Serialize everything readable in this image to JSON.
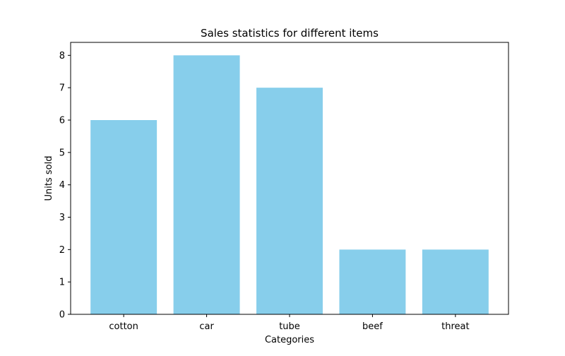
{
  "chart_data": {
    "type": "bar",
    "title": "Sales statistics for different items",
    "xlabel": "Categories",
    "ylabel": "Units sold",
    "categories": [
      "cotton",
      "car",
      "tube",
      "beef",
      "threat"
    ],
    "values": [
      6,
      8,
      7,
      2,
      2
    ],
    "yticks": [
      0,
      1,
      2,
      3,
      4,
      5,
      6,
      7,
      8
    ],
    "ylim": [
      0,
      8.4
    ],
    "grid": false,
    "bar_color": "#87ceeb"
  }
}
